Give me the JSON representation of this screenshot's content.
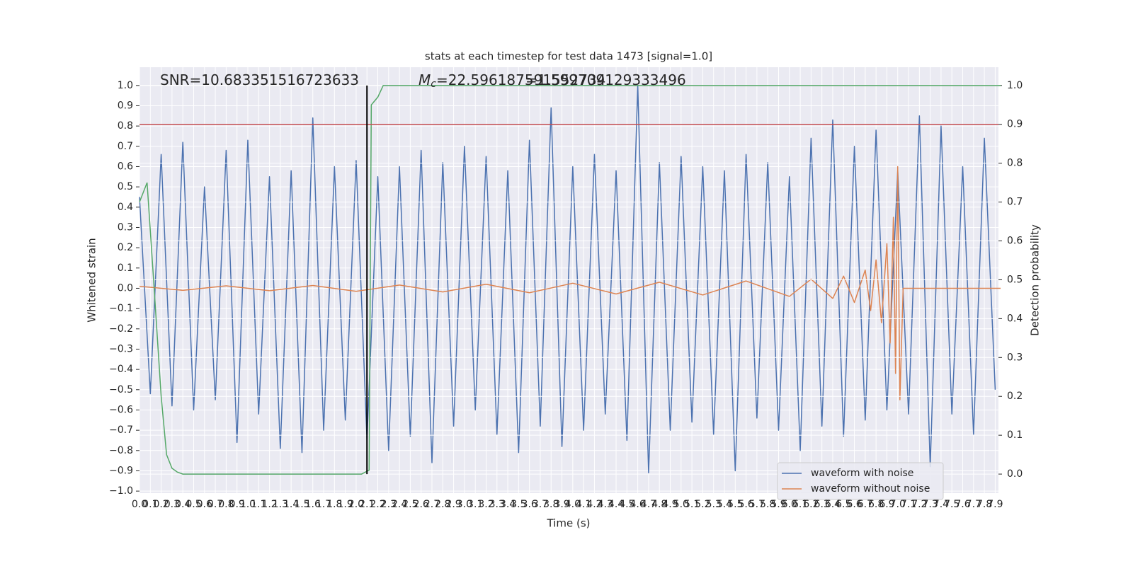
{
  "chart_data": {
    "type": "line",
    "title": "stats at each timestep for test data 1473 [signal=1.0]",
    "xlabel": "Time (s)",
    "ylabel": "Whitened strain",
    "y2label": "Detection probability",
    "annotations": [
      {
        "text": "SNR=10.683351516723633"
      },
      {
        "symbol": "M",
        "subscript": "c",
        "text": "=22.596187591552734"
      },
      {
        "text": "=1.599709129333496"
      }
    ],
    "xlim": [
      0,
      7.93
    ],
    "ylim": [
      -1.01,
      1.09
    ],
    "y2lim": [
      -0.049,
      1.047
    ],
    "grid": true,
    "legend": "lower right",
    "xticks": [
      {
        "value": 0,
        "label": "0.0"
      },
      0.1,
      0.2,
      0.3,
      0.4,
      0.5,
      0.6,
      0.7,
      0.8,
      0.9,
      {
        "value": 1,
        "label": "1.0"
      },
      1.1,
      1.2,
      1.3,
      1.4,
      1.5,
      1.6,
      1.7,
      1.8,
      1.9,
      {
        "value": 2,
        "label": "2.0"
      },
      2.1,
      2.2,
      2.3,
      2.4,
      2.5,
      2.6,
      2.7,
      2.8,
      2.9,
      {
        "value": 3,
        "label": "3.0"
      },
      3.1,
      3.2,
      3.3,
      3.4,
      3.5,
      3.6,
      3.7,
      3.8,
      3.9,
      {
        "value": 4,
        "label": "4.0"
      },
      4.1,
      4.2,
      4.3,
      4.4,
      4.5,
      4.6,
      4.7,
      4.8,
      4.9,
      {
        "value": 5,
        "label": "5.0"
      },
      5.1,
      5.2,
      5.3,
      5.4,
      5.5,
      5.6,
      5.7,
      5.8,
      5.9,
      {
        "value": 6,
        "label": "6.0"
      },
      6.1,
      6.2,
      6.3,
      6.4,
      6.5,
      6.6,
      6.7,
      6.8,
      6.9,
      {
        "value": 7,
        "label": "7.0"
      },
      7.1,
      7.2,
      7.3,
      7.4,
      7.5,
      7.6,
      7.7,
      7.8,
      7.9
    ],
    "yticks": [
      {
        "value": -1,
        "label": "−1.0"
      },
      {
        "value": -0.9,
        "label": "−0.9"
      },
      {
        "value": -0.8,
        "label": "−0.8"
      },
      {
        "value": -0.7,
        "label": "−0.7"
      },
      {
        "value": -0.6,
        "label": "−0.6"
      },
      {
        "value": -0.5,
        "label": "−0.5"
      },
      {
        "value": -0.4,
        "label": "−0.4"
      },
      {
        "value": -0.3,
        "label": "−0.3"
      },
      {
        "value": -0.2,
        "label": "−0.2"
      },
      {
        "value": -0.1,
        "label": "−0.1"
      },
      {
        "value": 0,
        "label": "0.0"
      },
      0.1,
      0.2,
      0.3,
      0.4,
      0.5,
      0.6,
      0.7,
      0.8,
      0.9,
      {
        "value": 1,
        "label": "1.0"
      }
    ],
    "y2ticks": [
      {
        "value": 0,
        "label": "0.0"
      },
      0.1,
      0.2,
      0.3,
      0.4,
      0.5,
      0.6,
      0.7,
      0.8,
      0.9,
      {
        "value": 1,
        "label": "1.0"
      }
    ],
    "series": [
      {
        "name": "waveform with noise",
        "color": "#4c72b0",
        "legend": true,
        "x": [
          0,
          0.1,
          0.2,
          0.3,
          0.4,
          0.5,
          0.6,
          0.7,
          0.8,
          0.9,
          1,
          1.1,
          1.2,
          1.3,
          1.4,
          1.5,
          1.6,
          1.7,
          1.8,
          1.9,
          2,
          2.1,
          2.2,
          2.3,
          2.4,
          2.5,
          2.6,
          2.7,
          2.8,
          2.9,
          3,
          3.1,
          3.2,
          3.3,
          3.4,
          3.5,
          3.6,
          3.7,
          3.8,
          3.9,
          4,
          4.1,
          4.2,
          4.3,
          4.4,
          4.5,
          4.6,
          4.7,
          4.8,
          4.9,
          5,
          5.1,
          5.2,
          5.3,
          5.4,
          5.5,
          5.6,
          5.7,
          5.8,
          5.9,
          6,
          6.1,
          6.2,
          6.3,
          6.4,
          6.5,
          6.6,
          6.7,
          6.8,
          6.9,
          7,
          7.1,
          7.2,
          7.3,
          7.4,
          7.5,
          7.6,
          7.7,
          7.8,
          7.9
        ],
        "values": [
          0.45,
          -0.52,
          0.66,
          -0.58,
          0.72,
          -0.6,
          0.5,
          -0.55,
          0.68,
          -0.76,
          0.73,
          -0.62,
          0.55,
          -0.79,
          0.58,
          -0.81,
          0.84,
          -0.7,
          0.6,
          -0.65,
          0.63,
          -0.75,
          0.55,
          -0.8,
          0.6,
          -0.73,
          0.68,
          -0.86,
          0.62,
          -0.68,
          0.7,
          -0.6,
          0.65,
          -0.72,
          0.58,
          -0.81,
          0.73,
          -0.68,
          0.89,
          -0.78,
          0.6,
          -0.7,
          0.66,
          -0.62,
          0.58,
          -0.75,
          1.0,
          -0.91,
          0.62,
          -0.7,
          0.65,
          -0.66,
          0.6,
          -0.72,
          0.58,
          -0.9,
          0.66,
          -0.64,
          0.62,
          -0.7,
          0.55,
          -0.8,
          0.74,
          -0.68,
          0.83,
          -0.73,
          0.7,
          -0.65,
          0.78,
          -0.6,
          0.58,
          -0.62,
          0.85,
          -0.88,
          0.8,
          -0.62,
          0.6,
          -0.72,
          0.74,
          -0.5
        ]
      },
      {
        "name": "waveform without noise",
        "color": "#dd8452",
        "legend": true,
        "x": [
          0,
          0.4,
          0.8,
          1.2,
          1.6,
          2.0,
          2.4,
          2.8,
          3.2,
          3.6,
          4.0,
          4.4,
          4.8,
          5.2,
          5.6,
          6.0,
          6.2,
          6.4,
          6.5,
          6.6,
          6.7,
          6.75,
          6.8,
          6.85,
          6.9,
          6.93,
          6.96,
          6.98,
          7.0,
          7.02,
          7.05,
          7.95
        ],
        "values": [
          0.01,
          -0.01,
          0.012,
          -0.012,
          0.014,
          -0.015,
          0.016,
          -0.018,
          0.02,
          -0.022,
          0.025,
          -0.028,
          0.03,
          -0.033,
          0.036,
          -0.04,
          0.045,
          -0.05,
          0.06,
          -0.07,
          0.09,
          -0.11,
          0.14,
          -0.17,
          0.22,
          -0.27,
          0.35,
          -0.42,
          0.6,
          -0.55,
          0,
          0
        ]
      },
      {
        "color": "#55a868",
        "axis": "y2",
        "x": [
          0,
          0.07,
          0.13,
          0.2,
          0.25,
          0.3,
          0.35,
          0.4,
          2.05,
          2.12,
          2.14,
          2.2,
          2.25,
          7.95
        ],
        "values": [
          0.7,
          0.75,
          0.5,
          0.2,
          0.05,
          0.015,
          0.005,
          0,
          0,
          0.01,
          0.95,
          0.97,
          1.0,
          1.0
        ]
      }
    ],
    "hlines": [
      {
        "y": 0.9,
        "axis": "y2",
        "color": "#c44e52"
      }
    ],
    "vlines": [
      {
        "x": 2.1,
        "ymin": 0,
        "ymax": 1,
        "axis": "y2",
        "color": "#000000"
      }
    ]
  }
}
